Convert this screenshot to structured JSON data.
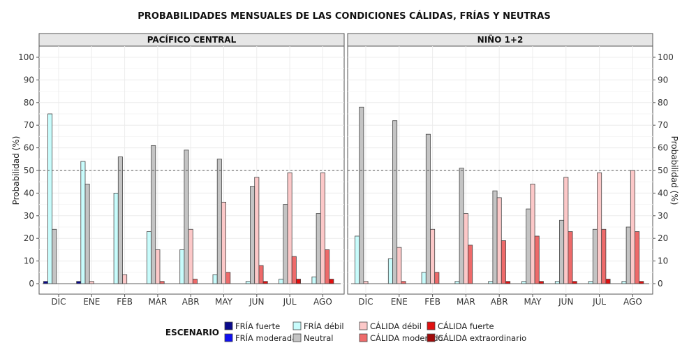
{
  "chart_data": {
    "type": "bar",
    "title": "PROBABILIDADES MENSUALES DE LAS CONDICIONES CÁLIDAS, FRÍAS Y NEUTRAS",
    "ylabel": "Probabilidad (%)",
    "xlabel": "",
    "ylim": [
      0,
      100
    ],
    "yticks": [
      0,
      10,
      20,
      30,
      40,
      50,
      60,
      70,
      80,
      90,
      100
    ],
    "reference_line": 50,
    "grid": true,
    "categories": [
      "DIC",
      "ENE",
      "FEB",
      "MAR",
      "ABR",
      "MAY",
      "JUN",
      "JUL",
      "AGO"
    ],
    "legend": {
      "title": "ESCENARIO",
      "position": "bottom",
      "entries": [
        "FRÍA fuerte",
        "FRÍA moderada",
        "FRÍA débil",
        "Neutral",
        "CÁLIDA débil",
        "CÁLIDA moderado",
        "CÁLIDA fuerte",
        "CÁLIDA extraordinario"
      ]
    },
    "colors": {
      "FRÍA fuerte": "#0a0a8c",
      "FRÍA moderada": "#1010f0",
      "FRÍA débil": "#c8fcfc",
      "Neutral": "#c4c4c4",
      "CÁLIDA débil": "#fcc8c8",
      "CÁLIDA moderado": "#ee6a6a",
      "CÁLIDA fuerte": "#e01010",
      "CÁLIDA extraordinario": "#a00a0a"
    },
    "panels": [
      {
        "name": "PACÍFICO CENTRAL",
        "series": [
          {
            "name": "FRÍA fuerte",
            "values": [
              1,
              1,
              0,
              0,
              0,
              0,
              0,
              0,
              0
            ]
          },
          {
            "name": "FRÍA moderada",
            "values": [
              0,
              0,
              0,
              0,
              0,
              0,
              0,
              0,
              0
            ]
          },
          {
            "name": "FRÍA débil",
            "values": [
              75,
              54,
              40,
              23,
              15,
              4,
              1,
              2,
              3
            ]
          },
          {
            "name": "Neutral",
            "values": [
              24,
              44,
              56,
              61,
              59,
              55,
              43,
              35,
              31
            ]
          },
          {
            "name": "CÁLIDA débil",
            "values": [
              0,
              1,
              4,
              15,
              24,
              36,
              47,
              49,
              49
            ]
          },
          {
            "name": "CÁLIDA moderado",
            "values": [
              0,
              0,
              0,
              1,
              2,
              5,
              8,
              12,
              15
            ]
          },
          {
            "name": "CÁLIDA fuerte",
            "values": [
              0,
              0,
              0,
              0,
              0,
              0,
              1,
              2,
              2
            ]
          },
          {
            "name": "CÁLIDA extraordinario",
            "values": [
              0,
              0,
              0,
              0,
              0,
              0,
              0,
              0,
              0
            ]
          }
        ]
      },
      {
        "name": "NIÑO 1+2",
        "series": [
          {
            "name": "FRÍA fuerte",
            "values": [
              0,
              0,
              0,
              0,
              0,
              0,
              0,
              0,
              0
            ]
          },
          {
            "name": "FRÍA moderada",
            "values": [
              0,
              0,
              0,
              0,
              0,
              0,
              0,
              0,
              0
            ]
          },
          {
            "name": "FRÍA débil",
            "values": [
              21,
              11,
              5,
              1,
              1,
              1,
              1,
              1,
              1
            ]
          },
          {
            "name": "Neutral",
            "values": [
              78,
              72,
              66,
              51,
              41,
              33,
              28,
              24,
              25
            ]
          },
          {
            "name": "CÁLIDA débil",
            "values": [
              1,
              16,
              24,
              31,
              38,
              44,
              47,
              49,
              50
            ]
          },
          {
            "name": "CÁLIDA moderado",
            "values": [
              0,
              1,
              5,
              17,
              19,
              21,
              23,
              24,
              23
            ]
          },
          {
            "name": "CÁLIDA fuerte",
            "values": [
              0,
              0,
              0,
              0,
              1,
              1,
              1,
              2,
              1
            ]
          },
          {
            "name": "CÁLIDA extraordinario",
            "values": [
              0,
              0,
              0,
              0,
              0,
              0,
              0,
              0,
              0
            ]
          }
        ]
      }
    ]
  }
}
